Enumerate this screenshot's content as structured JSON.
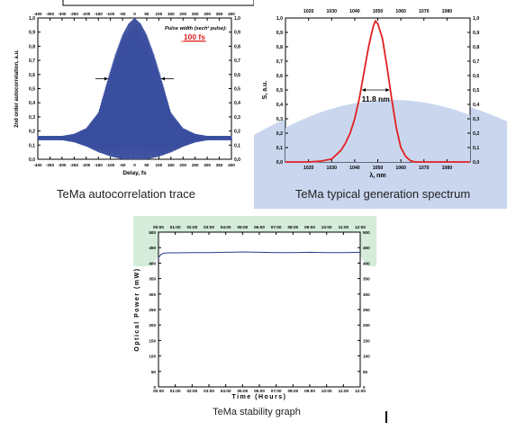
{
  "captions": {
    "left": "TeMa autocorrelation trace",
    "right": "TeMa typical generation spectrum",
    "bottom": "TeMa stability graph"
  },
  "chart_data": [
    {
      "type": "line",
      "id": "autocorrelation",
      "title": "",
      "xlabel": "Delay, fs",
      "ylabel": "2nd order autocorrelation, a.u.",
      "xlim": [
        -400,
        400
      ],
      "ylim": [
        0.0,
        1.0
      ],
      "x_ticks": [
        "-400",
        "-350",
        "-300",
        "-250",
        "-200",
        "-150",
        "-100",
        "-50",
        "0",
        "50",
        "100",
        "150",
        "200",
        "250",
        "300",
        "350",
        "400"
      ],
      "y_ticks": [
        "0,0",
        "0,1",
        "0,2",
        "0,3",
        "0,4",
        "0,5",
        "0,6",
        "0,7",
        "0,8",
        "0,9",
        "1,0"
      ],
      "annotation_label": "Pulse width (sech² pulse):",
      "annotation_value": "100 fs",
      "annotation_color": "#e02020",
      "series_color": "#3a4f9f",
      "envelope": {
        "background_level": 0.15,
        "peak": 1.0,
        "peak_x": 0,
        "upper_fwhm_level": 0.57,
        "upper_fwhm_x": [
          -110,
          110
        ],
        "points_upper": [
          [
            -400,
            0.165
          ],
          [
            -300,
            0.165
          ],
          [
            -250,
            0.18
          ],
          [
            -200,
            0.22
          ],
          [
            -150,
            0.33
          ],
          [
            -110,
            0.57
          ],
          [
            -80,
            0.74
          ],
          [
            -50,
            0.88
          ],
          [
            -25,
            0.96
          ],
          [
            0,
            1.0
          ],
          [
            25,
            0.96
          ],
          [
            50,
            0.88
          ],
          [
            80,
            0.74
          ],
          [
            110,
            0.57
          ],
          [
            150,
            0.33
          ],
          [
            200,
            0.22
          ],
          [
            250,
            0.18
          ],
          [
            300,
            0.165
          ],
          [
            400,
            0.165
          ]
        ],
        "points_lower": [
          [
            -400,
            0.135
          ],
          [
            -300,
            0.135
          ],
          [
            -250,
            0.12
          ],
          [
            -200,
            0.09
          ],
          [
            -150,
            0.05
          ],
          [
            -100,
            0.02
          ],
          [
            -50,
            0.0
          ],
          [
            0,
            0.0
          ],
          [
            50,
            0.0
          ],
          [
            100,
            0.02
          ],
          [
            150,
            0.05
          ],
          [
            200,
            0.09
          ],
          [
            250,
            0.12
          ],
          [
            300,
            0.135
          ],
          [
            400,
            0.135
          ]
        ]
      }
    },
    {
      "type": "line",
      "id": "spectrum",
      "title": "",
      "xlabel": "λ, nm",
      "ylabel": "S, a.u.",
      "xlim": [
        1010,
        1090
      ],
      "ylim": [
        0.0,
        1.0
      ],
      "x_ticks": [
        "1020",
        "1030",
        "1040",
        "1050",
        "1060",
        "1070",
        "1080"
      ],
      "y_ticks": [
        "0,0",
        "0,1",
        "0,2",
        "0,3",
        "0,4",
        "0,5",
        "0,6",
        "0,7",
        "0,8",
        "0,9",
        "1,0"
      ],
      "annotation_value": "11.8 nm",
      "fwhm_x": [
        1043.2,
        1055.0
      ],
      "fwhm_level": 0.5,
      "series_color": "#e02020",
      "x": [
        1010,
        1020,
        1025,
        1030,
        1032,
        1034,
        1036,
        1038,
        1040,
        1042,
        1044,
        1046,
        1048,
        1049,
        1050,
        1052,
        1054,
        1056,
        1058,
        1060,
        1062,
        1064,
        1066,
        1070,
        1080,
        1090
      ],
      "y": [
        0.0,
        0.0,
        0.005,
        0.02,
        0.05,
        0.08,
        0.13,
        0.2,
        0.3,
        0.44,
        0.62,
        0.8,
        0.94,
        0.98,
        0.96,
        0.86,
        0.66,
        0.44,
        0.24,
        0.1,
        0.04,
        0.01,
        0.0,
        0.0,
        0.0,
        0.0
      ]
    },
    {
      "type": "line",
      "id": "stability",
      "title": "",
      "xlabel": "Time (Hours)",
      "ylabel": "Optical Power (mW)",
      "xlim": [
        0,
        12
      ],
      "ylim": [
        0,
        500
      ],
      "x_ticks": [
        "00:00",
        "01:00",
        "02:00",
        "03:00",
        "04:00",
        "05:00",
        "06:00",
        "07:00",
        "08:00",
        "09:00",
        "10:00",
        "11:00",
        "12:00"
      ],
      "y_ticks": [
        "0",
        "50",
        "100",
        "150",
        "200",
        "250",
        "300",
        "350",
        "400",
        "450",
        "500"
      ],
      "series_color": "#1f3f8f",
      "x": [
        0,
        0.15,
        0.3,
        0.6,
        1,
        2,
        3,
        4,
        5,
        6,
        7,
        8,
        9,
        10,
        11,
        12
      ],
      "y": [
        418,
        428,
        432,
        433,
        433,
        434,
        434,
        435,
        436,
        435,
        434,
        434,
        435,
        434,
        434,
        435
      ]
    }
  ]
}
